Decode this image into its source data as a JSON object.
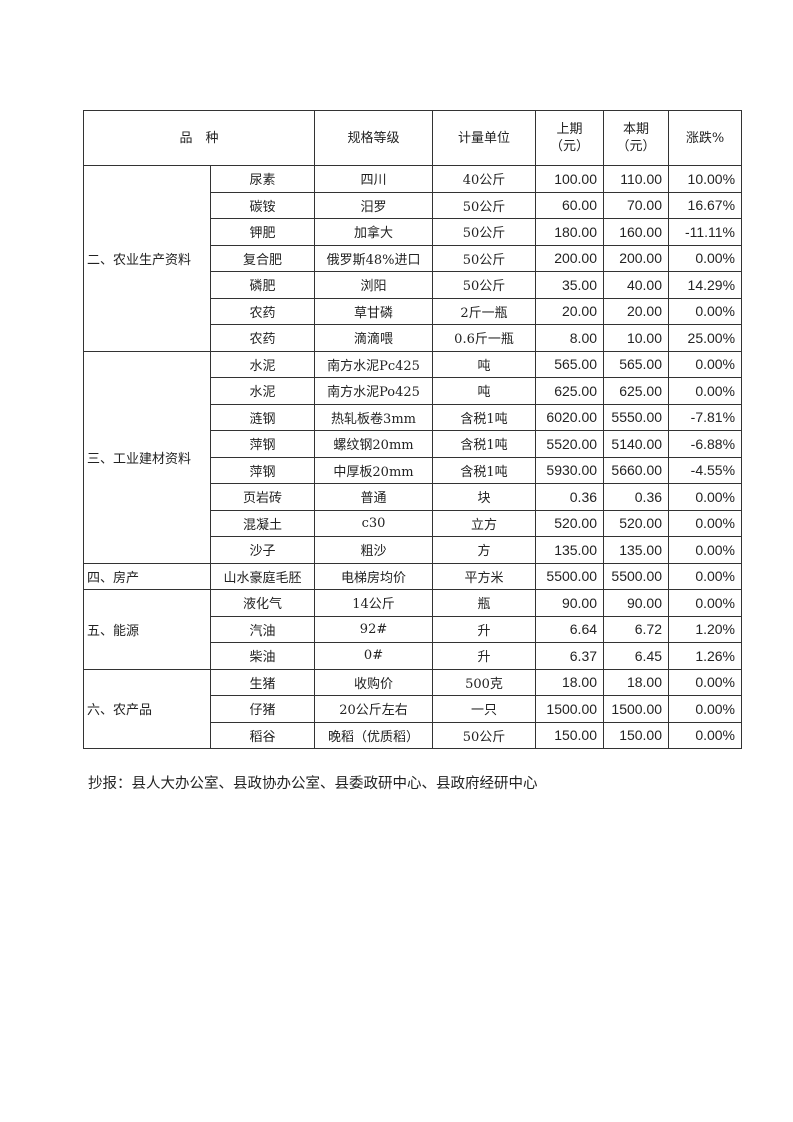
{
  "header": {
    "variety": "品　种",
    "spec": "规格等级",
    "unit": "计量单位",
    "prev": "上期\n（元）",
    "curr": "本期\n（元）",
    "change": "涨跌%"
  },
  "groups": [
    {
      "category": "二、农业生产资料",
      "rows": [
        [
          "尿素",
          "四川",
          "40公斤",
          "100.00",
          "110.00",
          "10.00%"
        ],
        [
          "碳铵",
          "汨罗",
          "50公斤",
          "60.00",
          "70.00",
          "16.67%"
        ],
        [
          "钾肥",
          "加拿大",
          "50公斤",
          "180.00",
          "160.00",
          "-11.11%"
        ],
        [
          "复合肥",
          "俄罗斯48%进口",
          "50公斤",
          "200.00",
          "200.00",
          "0.00%"
        ],
        [
          "磷肥",
          "浏阳",
          "50公斤",
          "35.00",
          "40.00",
          "14.29%"
        ],
        [
          "农药",
          "草甘磷",
          "2斤一瓶",
          "20.00",
          "20.00",
          "0.00%"
        ],
        [
          "农药",
          "滴滴喂",
          "0.6斤一瓶",
          "8.00",
          "10.00",
          "25.00%"
        ]
      ]
    },
    {
      "category": "三、工业建材资料",
      "rows": [
        [
          "水泥",
          "南方水泥Pc425",
          "吨",
          "565.00",
          "565.00",
          "0.00%"
        ],
        [
          "水泥",
          "南方水泥Po425",
          "吨",
          "625.00",
          "625.00",
          "0.00%"
        ],
        [
          "涟钢",
          "热轧板卷3mm",
          "含税1吨",
          "6020.00",
          "5550.00",
          "-7.81%"
        ],
        [
          "萍钢",
          "螺纹钢20mm",
          "含税1吨",
          "5520.00",
          "5140.00",
          "-6.88%"
        ],
        [
          "萍钢",
          "中厚板20mm",
          "含税1吨",
          "5930.00",
          "5660.00",
          "-4.55%"
        ],
        [
          "页岩砖",
          "普通",
          "块",
          "0.36",
          "0.36",
          "0.00%"
        ],
        [
          "混凝土",
          "c30",
          "立方",
          "520.00",
          "520.00",
          "0.00%"
        ],
        [
          "沙子",
          "粗沙",
          "方",
          "135.00",
          "135.00",
          "0.00%"
        ]
      ]
    },
    {
      "category": "四、房产",
      "rows": [
        [
          "山水豪庭毛胚",
          "电梯房均价",
          "平方米",
          "5500.00",
          "5500.00",
          "0.00%"
        ]
      ]
    },
    {
      "category": "五、能源",
      "rows": [
        [
          "液化气",
          "14公斤",
          "瓶",
          "90.00",
          "90.00",
          "0.00%"
        ],
        [
          "汽油",
          "92#",
          "升",
          "6.64",
          "6.72",
          "1.20%"
        ],
        [
          "柴油",
          "0#",
          "升",
          "6.37",
          "6.45",
          "1.26%"
        ]
      ]
    },
    {
      "category": "六、农产品",
      "rows": [
        [
          "生猪",
          "收购价",
          "500克",
          "18.00",
          "18.00",
          "0.00%"
        ],
        [
          "仔猪",
          "20公斤左右",
          "一只",
          "1500.00",
          "1500.00",
          "0.00%"
        ],
        [
          "稻谷",
          "晚稻（优质稻）",
          "50公斤",
          "150.00",
          "150.00",
          "0.00%"
        ]
      ]
    }
  ],
  "footer": "抄报：县人大办公室、县政协办公室、县委政研中心、县政府经研中心"
}
